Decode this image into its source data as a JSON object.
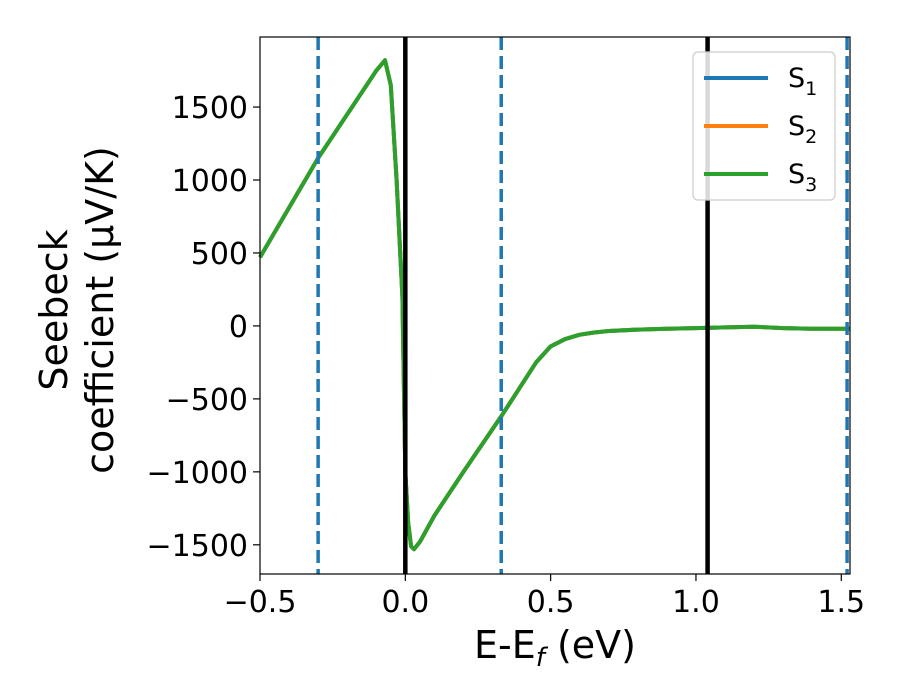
{
  "chart_data": {
    "type": "line",
    "xlabel_main": "E-E",
    "xlabel_sub": "f",
    "xlabel_unit": " (eV)",
    "ylabel_line1": "Seebeck",
    "ylabel_line2": "coefficient  (μV/K)",
    "xlim": [
      -0.5,
      1.53
    ],
    "ylim": [
      -1700,
      1980
    ],
    "xticks": [
      -0.5,
      0.0,
      0.5,
      1.0,
      1.5
    ],
    "xtick_labels": [
      "−0.5",
      "0.0",
      "0.5",
      "1.0",
      "1.5"
    ],
    "yticks": [
      -1500,
      -1000,
      -500,
      0,
      500,
      1000,
      1500
    ],
    "ytick_labels": [
      "−1500",
      "−1000",
      "−500",
      "0",
      "500",
      "1000",
      "1500"
    ],
    "vlines": [
      {
        "x": -0.3,
        "style": "dashed",
        "color": "#1f77b4"
      },
      {
        "x": 0.0,
        "style": "solid",
        "color": "#000000"
      },
      {
        "x": 0.33,
        "style": "dashed",
        "color": "#1f77b4"
      },
      {
        "x": 1.04,
        "style": "solid",
        "color": "#000000"
      },
      {
        "x": 1.52,
        "style": "dashed",
        "color": "#1f77b4"
      }
    ],
    "series": [
      {
        "name": "S1",
        "legend_main": "S",
        "legend_sub": "1",
        "color": "#1f77b4",
        "x": [
          -0.5,
          -0.3,
          -0.1,
          -0.07,
          -0.05,
          -0.03,
          -0.01,
          0.0,
          0.01,
          0.02,
          0.03,
          0.05,
          0.1,
          0.2,
          0.33,
          0.45,
          0.5,
          0.55,
          0.6,
          0.65,
          0.7,
          0.8,
          0.9,
          1.0,
          1.1,
          1.2,
          1.3,
          1.4,
          1.53
        ],
        "y": [
          470,
          1150,
          1750,
          1820,
          1650,
          1000,
          200,
          -1000,
          -1350,
          -1510,
          -1530,
          -1480,
          -1300,
          -1000,
          -620,
          -250,
          -140,
          -90,
          -60,
          -45,
          -35,
          -25,
          -20,
          -15,
          -10,
          -5,
          -15,
          -20,
          -20
        ]
      },
      {
        "name": "S2",
        "legend_main": "S",
        "legend_sub": "2",
        "color": "#ff7f0e",
        "x": [
          -0.5,
          -0.3,
          -0.1,
          -0.07,
          -0.05,
          -0.03,
          -0.01,
          0.0,
          0.01,
          0.02,
          0.03,
          0.05,
          0.1,
          0.2,
          0.33,
          0.45,
          0.5,
          0.55,
          0.6,
          0.65,
          0.7,
          0.8,
          0.9,
          1.0,
          1.1,
          1.2,
          1.3,
          1.4,
          1.53
        ],
        "y": [
          470,
          1150,
          1750,
          1820,
          1650,
          1000,
          200,
          -1000,
          -1350,
          -1510,
          -1530,
          -1480,
          -1300,
          -1000,
          -620,
          -250,
          -140,
          -90,
          -60,
          -45,
          -35,
          -25,
          -20,
          -15,
          -10,
          -5,
          -15,
          -20,
          -20
        ]
      },
      {
        "name": "S3",
        "legend_main": "S",
        "legend_sub": "3",
        "color": "#2ca02c",
        "x": [
          -0.5,
          -0.3,
          -0.1,
          -0.07,
          -0.05,
          -0.03,
          -0.01,
          0.0,
          0.01,
          0.02,
          0.03,
          0.05,
          0.1,
          0.2,
          0.33,
          0.45,
          0.5,
          0.55,
          0.6,
          0.65,
          0.7,
          0.8,
          0.9,
          1.0,
          1.1,
          1.2,
          1.3,
          1.4,
          1.53
        ],
        "y": [
          470,
          1150,
          1750,
          1820,
          1650,
          1000,
          200,
          -1000,
          -1350,
          -1510,
          -1530,
          -1480,
          -1300,
          -1000,
          -620,
          -250,
          -140,
          -90,
          -60,
          -45,
          -35,
          -25,
          -20,
          -15,
          -10,
          -5,
          -15,
          -20,
          -20
        ]
      }
    ],
    "legend_position": "top-right",
    "grid": false
  }
}
